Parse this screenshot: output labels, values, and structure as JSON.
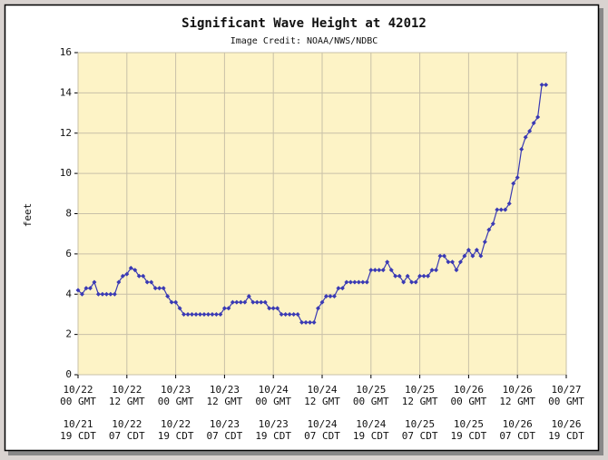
{
  "chart_data": {
    "type": "line",
    "title": "Significant Wave Height at 42012",
    "subtitle": "Image Credit: NOAA/NWS/NDBC",
    "ylabel": "feet",
    "xlim": [
      0,
      120
    ],
    "xticks": [
      {
        "value": 0,
        "label": [
          "10/22",
          "00 GMT"
        ],
        "label_local": [
          "10/21",
          "19 CDT"
        ]
      },
      {
        "value": 12,
        "label": [
          "10/22",
          "12 GMT"
        ],
        "label_local": [
          "10/22",
          "07 CDT"
        ]
      },
      {
        "value": 24,
        "label": [
          "10/23",
          "00 GMT"
        ],
        "label_local": [
          "10/22",
          "19 CDT"
        ]
      },
      {
        "value": 36,
        "label": [
          "10/23",
          "12 GMT"
        ],
        "label_local": [
          "10/23",
          "07 CDT"
        ]
      },
      {
        "value": 48,
        "label": [
          "10/24",
          "00 GMT"
        ],
        "label_local": [
          "10/23",
          "19 CDT"
        ]
      },
      {
        "value": 60,
        "label": [
          "10/24",
          "12 GMT"
        ],
        "label_local": [
          "10/24",
          "07 CDT"
        ]
      },
      {
        "value": 72,
        "label": [
          "10/25",
          "00 GMT"
        ],
        "label_local": [
          "10/24",
          "19 CDT"
        ]
      },
      {
        "value": 84,
        "label": [
          "10/25",
          "12 GMT"
        ],
        "label_local": [
          "10/25",
          "07 CDT"
        ]
      },
      {
        "value": 96,
        "label": [
          "10/26",
          "00 GMT"
        ],
        "label_local": [
          "10/25",
          "19 CDT"
        ]
      },
      {
        "value": 108,
        "label": [
          "10/26",
          "12 GMT"
        ],
        "label_local": [
          "10/26",
          "07 CDT"
        ]
      },
      {
        "value": 120,
        "label": [
          "10/27",
          "00 GMT"
        ],
        "label_local": [
          "10/26",
          "19 CDT"
        ]
      }
    ],
    "ylim": [
      0,
      16
    ],
    "yticks": [
      0,
      2,
      4,
      6,
      8,
      10,
      12,
      14,
      16
    ],
    "grid": true,
    "series": [
      {
        "color": "#3a3ab4",
        "x": [
          0,
          1,
          2,
          3,
          4,
          5,
          6,
          7,
          8,
          9,
          10,
          11,
          12,
          13,
          14,
          15,
          16,
          17,
          18,
          19,
          20,
          21,
          22,
          23,
          24,
          25,
          26,
          27,
          28,
          29,
          30,
          31,
          32,
          33,
          34,
          35,
          36,
          37,
          38,
          39,
          40,
          41,
          42,
          43,
          44,
          45,
          46,
          47,
          48,
          49,
          50,
          51,
          52,
          53,
          54,
          55,
          56,
          57,
          58,
          59,
          60,
          61,
          62,
          63,
          64,
          65,
          66,
          67,
          68,
          69,
          70,
          71,
          72,
          73,
          74,
          75,
          76,
          77,
          78,
          79,
          80,
          81,
          82,
          83,
          84,
          85,
          86,
          87,
          88,
          89,
          90,
          91,
          92,
          93,
          94,
          95,
          96,
          97,
          98,
          99,
          100,
          101,
          102,
          103,
          104,
          105,
          106,
          107,
          108,
          109,
          110,
          111,
          112,
          113,
          114,
          115
        ],
        "values": [
          4.2,
          4.0,
          4.3,
          4.3,
          4.6,
          4.0,
          4.0,
          4.0,
          4.0,
          4.0,
          4.6,
          4.9,
          5.0,
          5.3,
          5.2,
          4.9,
          4.9,
          4.6,
          4.6,
          4.3,
          4.3,
          4.3,
          3.9,
          3.6,
          3.6,
          3.3,
          3.0,
          3.0,
          3.0,
          3.0,
          3.0,
          3.0,
          3.0,
          3.0,
          3.0,
          3.0,
          3.3,
          3.3,
          3.6,
          3.6,
          3.6,
          3.6,
          3.9,
          3.6,
          3.6,
          3.6,
          3.6,
          3.3,
          3.3,
          3.3,
          3.0,
          3.0,
          3.0,
          3.0,
          3.0,
          2.6,
          2.6,
          2.6,
          2.6,
          3.3,
          3.6,
          3.9,
          3.9,
          3.9,
          4.3,
          4.3,
          4.6,
          4.6,
          4.6,
          4.6,
          4.6,
          4.6,
          5.2,
          5.2,
          5.2,
          5.2,
          5.6,
          5.2,
          4.9,
          4.9,
          4.6,
          4.9,
          4.6,
          4.6,
          4.9,
          4.9,
          4.9,
          5.2,
          5.2,
          5.9,
          5.9,
          5.6,
          5.6,
          5.2,
          5.6,
          5.9,
          6.2,
          5.9,
          6.2,
          5.9,
          6.6,
          7.2,
          7.5,
          8.2,
          8.2,
          8.2,
          8.5,
          9.5,
          9.8,
          11.2,
          11.8,
          12.1,
          12.5,
          12.8,
          14.4,
          14.4
        ]
      }
    ]
  }
}
